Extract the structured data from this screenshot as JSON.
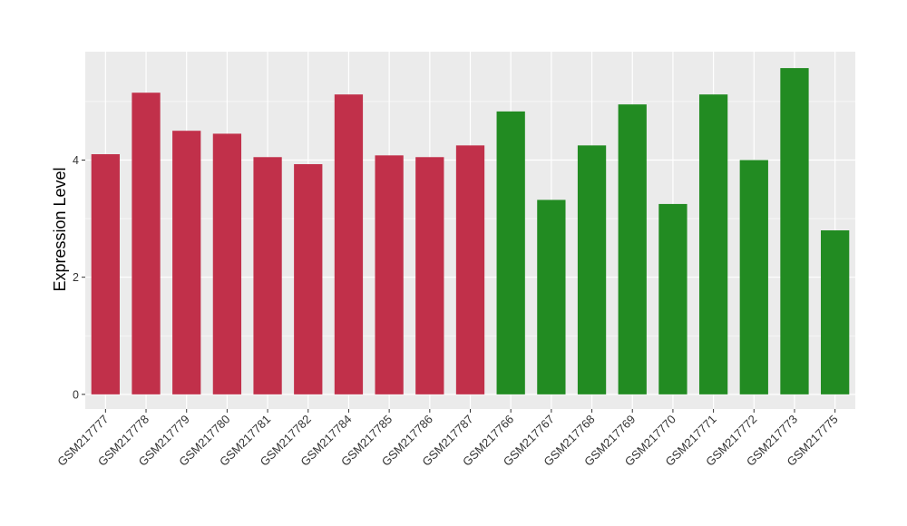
{
  "chart_data": {
    "type": "bar",
    "title": "",
    "xlabel": "",
    "ylabel": "Expression Level",
    "ylim": [
      -0.25,
      5.85
    ],
    "yticks": [
      0,
      2,
      4
    ],
    "grid": true,
    "legend": "none",
    "categories": [
      "GSM217777",
      "GSM217778",
      "GSM217779",
      "GSM217780",
      "GSM217781",
      "GSM217782",
      "GSM217784",
      "GSM217785",
      "GSM217786",
      "GSM217787",
      "GSM217766",
      "GSM217767",
      "GSM217768",
      "GSM217769",
      "GSM217770",
      "GSM217771",
      "GSM217772",
      "GSM217773",
      "GSM217775"
    ],
    "values": [
      4.1,
      5.15,
      4.5,
      4.45,
      4.05,
      3.93,
      5.12,
      4.08,
      4.05,
      4.25,
      4.83,
      3.32,
      4.25,
      4.95,
      3.25,
      5.12,
      4.0,
      5.57,
      2.8
    ],
    "colors": [
      "#C1304A",
      "#C1304A",
      "#C1304A",
      "#C1304A",
      "#C1304A",
      "#C1304A",
      "#C1304A",
      "#C1304A",
      "#C1304A",
      "#C1304A",
      "#228B22",
      "#228B22",
      "#228B22",
      "#228B22",
      "#228B22",
      "#228B22",
      "#228B22",
      "#228B22",
      "#228B22"
    ],
    "panel_background": "#EBEBEB",
    "grid_color": "#FFFFFF"
  }
}
